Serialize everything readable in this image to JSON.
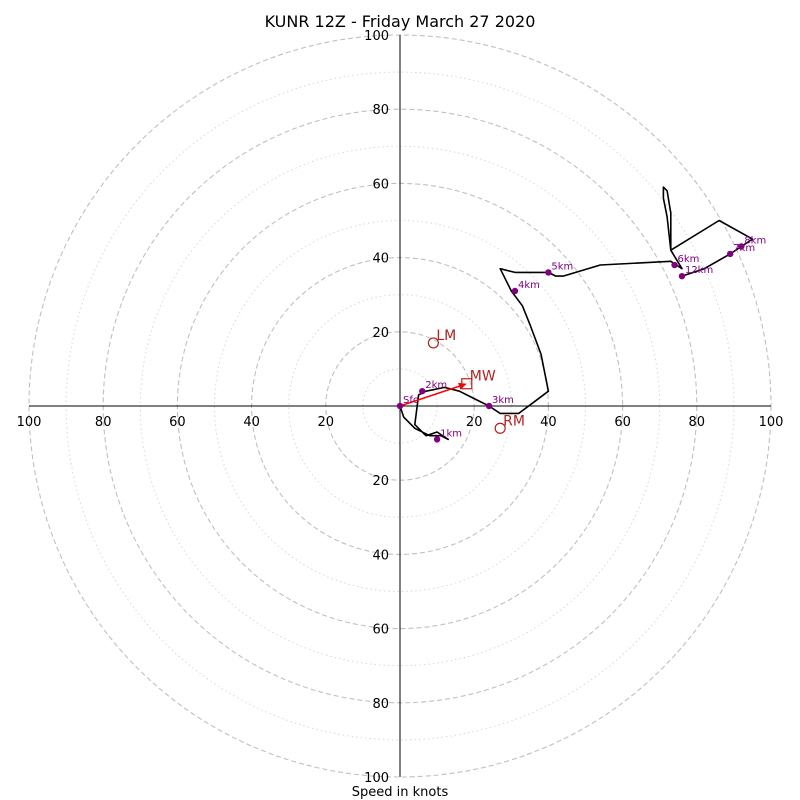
{
  "chart_data": {
    "type": "hodograph",
    "title": "KUNR 12Z - Friday March 27 2020",
    "xlabel": "Speed in knots",
    "units": "knots",
    "max_speed": 100,
    "major_rings": [
      20,
      40,
      60,
      80,
      100
    ],
    "minor_rings": [
      10,
      30,
      50,
      70,
      90
    ],
    "ring_tick_labels": [
      "20",
      "40",
      "60",
      "80",
      "100"
    ],
    "grid": true,
    "hodograph_line": [
      [
        0,
        0
      ],
      [
        1,
        -3
      ],
      [
        4,
        -6
      ],
      [
        8,
        -8
      ],
      [
        11,
        -8
      ],
      [
        13,
        -9
      ],
      [
        10,
        -7
      ],
      [
        7,
        -8
      ],
      [
        4,
        -5
      ],
      [
        5,
        3
      ],
      [
        7,
        4
      ],
      [
        12,
        5
      ],
      [
        16,
        4
      ],
      [
        20,
        2
      ],
      [
        24,
        0
      ],
      [
        27,
        -2
      ],
      [
        32,
        -2
      ],
      [
        36,
        1
      ],
      [
        40,
        4
      ],
      [
        38,
        14
      ],
      [
        35,
        22
      ],
      [
        33,
        27
      ],
      [
        30,
        31
      ],
      [
        27,
        37
      ],
      [
        31,
        36
      ],
      [
        37,
        36
      ],
      [
        40,
        36
      ],
      [
        42,
        35
      ],
      [
        44,
        35
      ],
      [
        54,
        38
      ],
      [
        73,
        39
      ],
      [
        76,
        37
      ],
      [
        73,
        42
      ],
      [
        72,
        51
      ],
      [
        71,
        56
      ],
      [
        71,
        59
      ],
      [
        72,
        58
      ],
      [
        73,
        52
      ],
      [
        73,
        42
      ],
      [
        86,
        50
      ],
      [
        95,
        45
      ],
      [
        92,
        43
      ],
      [
        89,
        41
      ],
      [
        82,
        37
      ],
      [
        76,
        35
      ]
    ],
    "height_points": [
      {
        "label": "Sfc",
        "u": 0,
        "v": 0
      },
      {
        "label": "1km",
        "u": 10,
        "v": -9
      },
      {
        "label": "2km",
        "u": 6,
        "v": 4
      },
      {
        "label": "3km",
        "u": 24,
        "v": 0
      },
      {
        "label": "4km",
        "u": 31,
        "v": 31
      },
      {
        "label": "5km",
        "u": 40,
        "v": 36
      },
      {
        "label": "6km",
        "u": 74,
        "v": 38
      },
      {
        "label": "7km",
        "u": 89,
        "v": 41
      },
      {
        "label": "8km",
        "u": 92,
        "v": 43
      },
      {
        "label": "12km",
        "u": 76,
        "v": 35
      }
    ],
    "motion_markers": [
      {
        "label": "LM",
        "u": 9,
        "v": 17,
        "shape": "circle"
      },
      {
        "label": "RM",
        "u": 27,
        "v": -6,
        "shape": "circle"
      },
      {
        "label": "MW",
        "u": 18,
        "v": 6,
        "shape": "square"
      }
    ],
    "mean_wind_vector": {
      "from": [
        0,
        0
      ],
      "to": [
        18,
        6
      ]
    },
    "colors": {
      "hodograph_line": "#000000",
      "height_points": "#800080",
      "motion_markers": "#b22222",
      "mean_wind_vector": "#ff0000",
      "grid": "#c0c0c0"
    }
  }
}
